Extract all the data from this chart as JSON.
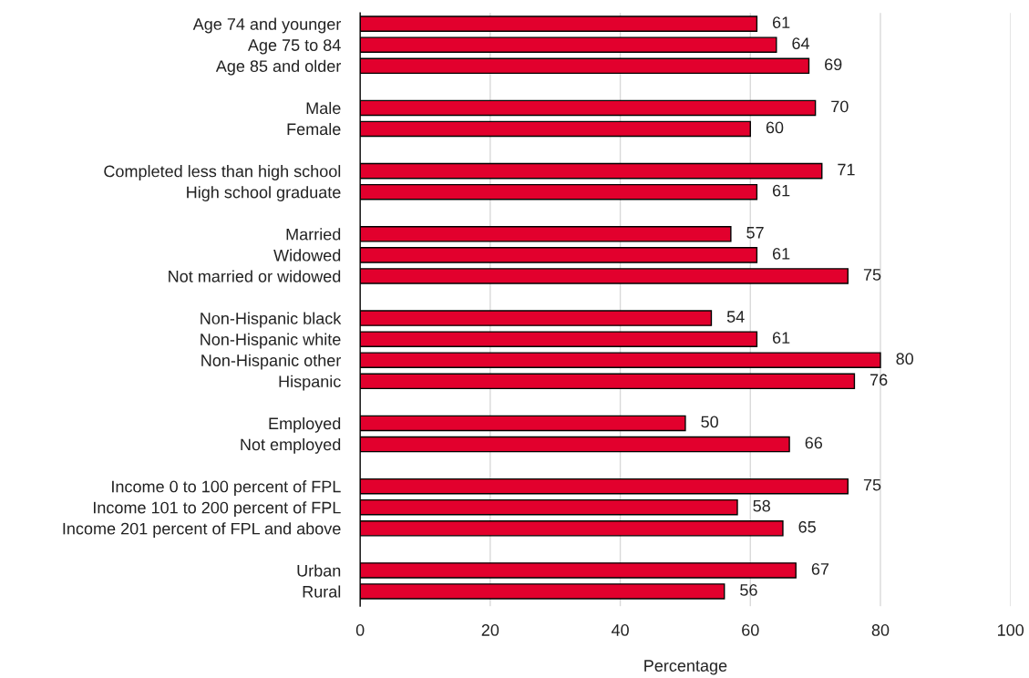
{
  "chart_data": {
    "type": "bar",
    "orientation": "horizontal",
    "categories": [
      "Age 74 and younger",
      "Age 75 to 84",
      "Age 85 and older",
      null,
      "Male",
      "Female",
      null,
      "Completed less than high school",
      "High school graduate",
      null,
      "Married",
      "Widowed",
      "Not married or widowed",
      null,
      "Non-Hispanic black",
      "Non-Hispanic white",
      "Non-Hispanic other",
      "Hispanic",
      null,
      "Employed",
      "Not employed",
      null,
      "Income 0 to 100 percent of FPL",
      "Income 101 to 200 percent of FPL",
      "Income 201 percent of FPL and above",
      null,
      "Urban",
      "Rural"
    ],
    "values": [
      61,
      64,
      69,
      null,
      70,
      60,
      null,
      71,
      61,
      null,
      57,
      61,
      75,
      null,
      54,
      61,
      80,
      76,
      null,
      50,
      66,
      null,
      75,
      58,
      65,
      null,
      67,
      56
    ],
    "color": "#e2002d",
    "xlim": [
      0,
      100
    ],
    "xticks": [
      0,
      20,
      40,
      60,
      80,
      100
    ],
    "xlabel": "Percentage",
    "grid": "x",
    "data_labels": true
  }
}
